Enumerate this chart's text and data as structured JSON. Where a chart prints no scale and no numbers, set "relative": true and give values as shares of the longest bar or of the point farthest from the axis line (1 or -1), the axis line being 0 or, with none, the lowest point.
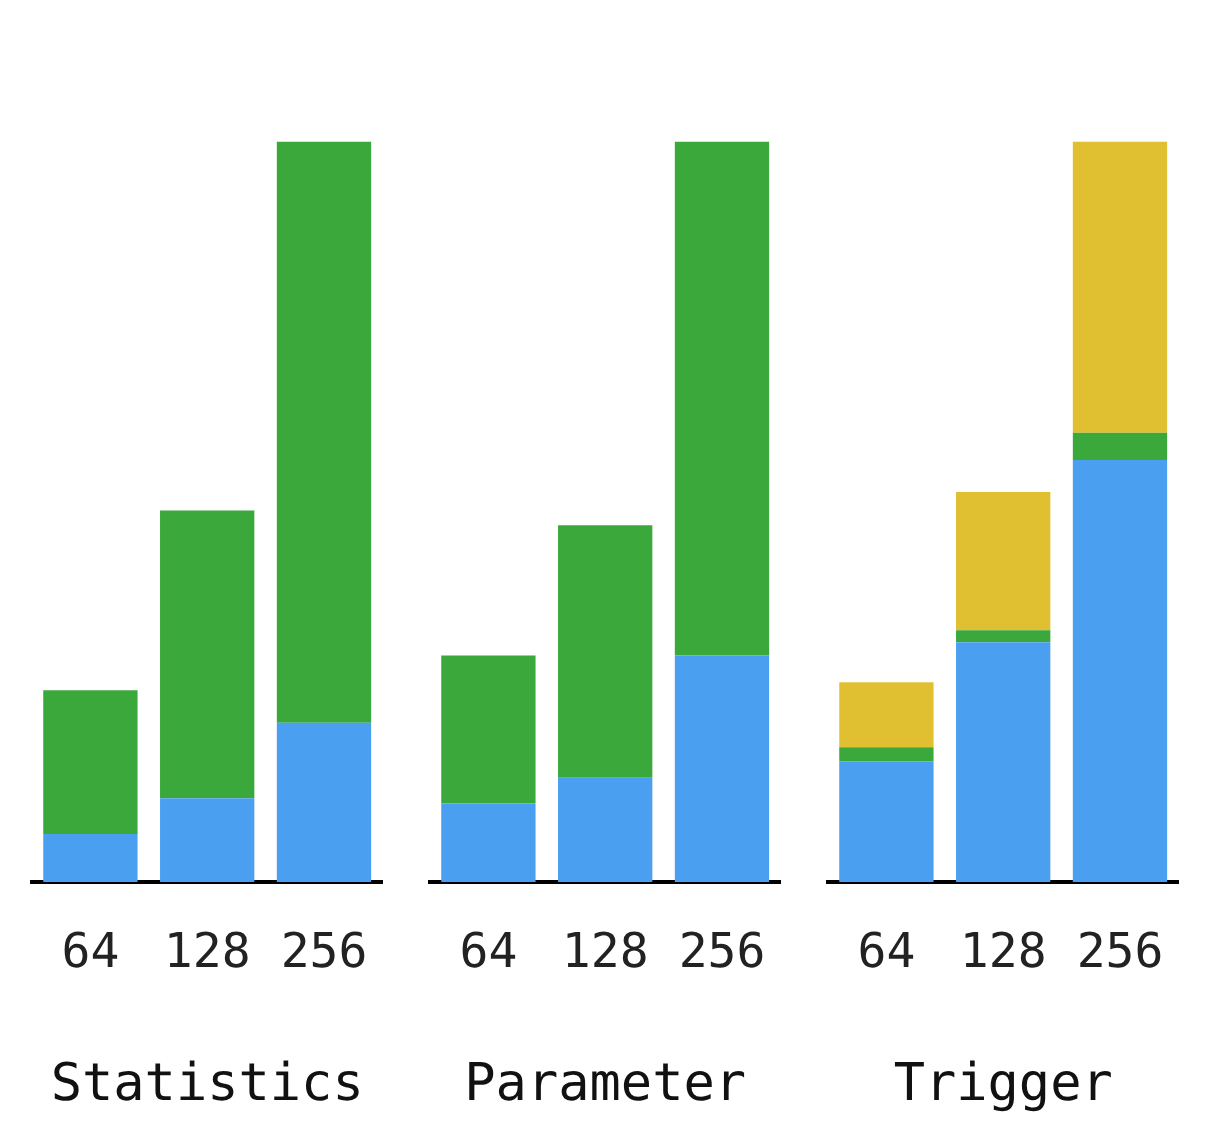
{
  "chart_data": [
    {
      "type": "bar",
      "stacked": true,
      "relative": true,
      "xlabel": "Statistics",
      "categories": [
        "64",
        "128",
        "256"
      ],
      "series": [
        {
          "color": "#4a9ff0",
          "values": [
            0.065,
            0.113,
            0.215
          ]
        },
        {
          "color": "#3aa83a",
          "values": [
            0.194,
            0.389,
            0.785
          ]
        }
      ]
    },
    {
      "type": "bar",
      "stacked": true,
      "relative": true,
      "xlabel": "Parameter",
      "categories": [
        "64",
        "128",
        "256"
      ],
      "series": [
        {
          "color": "#4a9ff0",
          "values": [
            0.106,
            0.141,
            0.306
          ]
        },
        {
          "color": "#3aa83a",
          "values": [
            0.2,
            0.341,
            0.694
          ]
        }
      ]
    },
    {
      "type": "bar",
      "stacked": true,
      "relative": true,
      "xlabel": "Trigger",
      "categories": [
        "64",
        "128",
        "256"
      ],
      "series": [
        {
          "color": "#4a9ff0",
          "values": [
            0.163,
            0.324,
            0.57
          ]
        },
        {
          "color": "#3aa83a",
          "values": [
            0.019,
            0.016,
            0.037
          ]
        },
        {
          "color": "#e0c030",
          "values": [
            0.088,
            0.187,
            0.393
          ]
        }
      ]
    }
  ]
}
